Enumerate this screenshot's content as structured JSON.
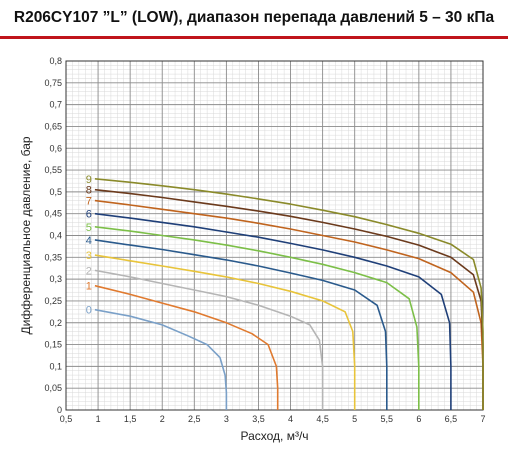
{
  "title": "R206CY107 ”L” (LOW), диапазон перепада давлений 5 – 30 кПа",
  "chart_data": {
    "type": "line",
    "title": "R206CY107 ”L” (LOW), диапазон перепада давлений 5 – 30 кПа",
    "xlabel": "Расход, м³/ч",
    "ylabel": "Дифференциальное давление, бар",
    "xlim": [
      0.5,
      7
    ],
    "ylim": [
      0,
      0.8
    ],
    "x_ticks": [
      "0,5",
      "1",
      "1,5",
      "2",
      "2,5",
      "3",
      "3,5",
      "4",
      "4,5",
      "5",
      "5,5",
      "6",
      "6,5",
      "7"
    ],
    "y_ticks": [
      "0",
      "0,05",
      "0,1",
      "0,15",
      "0,2",
      "0,25",
      "0,3",
      "0,35",
      "0,4",
      "0,45",
      "0,5",
      "0,55",
      "0,6",
      "0,65",
      "0,7",
      "0,75",
      "0,8"
    ],
    "grid": true,
    "series": [
      {
        "name": "0",
        "color": "#7aa0c8",
        "points": [
          [
            0.95,
            0.23
          ],
          [
            1.5,
            0.215
          ],
          [
            2.0,
            0.195
          ],
          [
            2.4,
            0.17
          ],
          [
            2.7,
            0.15
          ],
          [
            2.9,
            0.12
          ],
          [
            2.98,
            0.08
          ],
          [
            3.0,
            0.04
          ],
          [
            3.0,
            0.0
          ]
        ]
      },
      {
        "name": "1",
        "color": "#e07a2f",
        "points": [
          [
            0.95,
            0.285
          ],
          [
            1.5,
            0.265
          ],
          [
            2.0,
            0.245
          ],
          [
            2.5,
            0.225
          ],
          [
            3.0,
            0.2
          ],
          [
            3.4,
            0.175
          ],
          [
            3.65,
            0.15
          ],
          [
            3.78,
            0.1
          ],
          [
            3.8,
            0.05
          ],
          [
            3.8,
            0.0
          ]
        ]
      },
      {
        "name": "2",
        "color": "#b5b5b5",
        "points": [
          [
            0.95,
            0.32
          ],
          [
            1.5,
            0.305
          ],
          [
            2.0,
            0.29
          ],
          [
            2.5,
            0.275
          ],
          [
            3.0,
            0.26
          ],
          [
            3.5,
            0.24
          ],
          [
            4.0,
            0.215
          ],
          [
            4.3,
            0.195
          ],
          [
            4.45,
            0.16
          ],
          [
            4.5,
            0.1
          ],
          [
            4.5,
            0.0
          ]
        ]
      },
      {
        "name": "3",
        "color": "#e8c43a",
        "points": [
          [
            0.95,
            0.355
          ],
          [
            1.5,
            0.342
          ],
          [
            2.0,
            0.33
          ],
          [
            2.5,
            0.318
          ],
          [
            3.0,
            0.305
          ],
          [
            3.5,
            0.29
          ],
          [
            4.0,
            0.272
          ],
          [
            4.5,
            0.25
          ],
          [
            4.85,
            0.225
          ],
          [
            4.97,
            0.18
          ],
          [
            5.0,
            0.1
          ],
          [
            5.0,
            0.0
          ]
        ]
      },
      {
        "name": "4",
        "color": "#2a5a8c",
        "points": [
          [
            0.95,
            0.39
          ],
          [
            1.5,
            0.378
          ],
          [
            2.0,
            0.368
          ],
          [
            2.5,
            0.356
          ],
          [
            3.0,
            0.344
          ],
          [
            3.5,
            0.33
          ],
          [
            4.0,
            0.314
          ],
          [
            4.5,
            0.297
          ],
          [
            5.0,
            0.275
          ],
          [
            5.35,
            0.24
          ],
          [
            5.48,
            0.18
          ],
          [
            5.5,
            0.1
          ],
          [
            5.5,
            0.0
          ]
        ]
      },
      {
        "name": "5",
        "color": "#7cbf48",
        "points": [
          [
            0.95,
            0.42
          ],
          [
            1.5,
            0.41
          ],
          [
            2.0,
            0.4
          ],
          [
            2.5,
            0.39
          ],
          [
            3.0,
            0.378
          ],
          [
            3.5,
            0.365
          ],
          [
            4.0,
            0.35
          ],
          [
            4.5,
            0.334
          ],
          [
            5.0,
            0.315
          ],
          [
            5.5,
            0.292
          ],
          [
            5.85,
            0.255
          ],
          [
            5.97,
            0.19
          ],
          [
            6.0,
            0.1
          ],
          [
            6.0,
            0.0
          ]
        ]
      },
      {
        "name": "6",
        "color": "#1f3f78",
        "points": [
          [
            0.95,
            0.45
          ],
          [
            1.5,
            0.44
          ],
          [
            2.0,
            0.43
          ],
          [
            2.5,
            0.42
          ],
          [
            3.0,
            0.408
          ],
          [
            3.5,
            0.396
          ],
          [
            4.0,
            0.382
          ],
          [
            4.5,
            0.367
          ],
          [
            5.0,
            0.35
          ],
          [
            5.5,
            0.33
          ],
          [
            6.0,
            0.305
          ],
          [
            6.35,
            0.265
          ],
          [
            6.48,
            0.2
          ],
          [
            6.5,
            0.1
          ],
          [
            6.5,
            0.0
          ]
        ]
      },
      {
        "name": "7",
        "color": "#c0641e",
        "points": [
          [
            0.95,
            0.48
          ],
          [
            1.5,
            0.47
          ],
          [
            2.0,
            0.46
          ],
          [
            2.5,
            0.45
          ],
          [
            3.0,
            0.44
          ],
          [
            3.5,
            0.428
          ],
          [
            4.0,
            0.415
          ],
          [
            4.5,
            0.4
          ],
          [
            5.0,
            0.385
          ],
          [
            5.5,
            0.367
          ],
          [
            6.0,
            0.347
          ],
          [
            6.5,
            0.315
          ],
          [
            6.85,
            0.27
          ],
          [
            6.97,
            0.2
          ],
          [
            7.0,
            0.1
          ],
          [
            7.0,
            0.0
          ]
        ]
      },
      {
        "name": "8",
        "color": "#6b3a1c",
        "points": [
          [
            0.95,
            0.505
          ],
          [
            1.5,
            0.496
          ],
          [
            2.0,
            0.487
          ],
          [
            2.5,
            0.477
          ],
          [
            3.0,
            0.467
          ],
          [
            3.5,
            0.456
          ],
          [
            4.0,
            0.444
          ],
          [
            4.5,
            0.43
          ],
          [
            5.0,
            0.415
          ],
          [
            5.5,
            0.398
          ],
          [
            6.0,
            0.378
          ],
          [
            6.5,
            0.35
          ],
          [
            6.85,
            0.31
          ],
          [
            6.97,
            0.25
          ],
          [
            7.0,
            0.15
          ],
          [
            7.0,
            0.0
          ]
        ]
      },
      {
        "name": "9",
        "color": "#8a8a2a",
        "points": [
          [
            0.95,
            0.53
          ],
          [
            1.5,
            0.522
          ],
          [
            2.0,
            0.514
          ],
          [
            2.5,
            0.505
          ],
          [
            3.0,
            0.495
          ],
          [
            3.5,
            0.484
          ],
          [
            4.0,
            0.472
          ],
          [
            4.5,
            0.458
          ],
          [
            5.0,
            0.443
          ],
          [
            5.5,
            0.425
          ],
          [
            6.0,
            0.405
          ],
          [
            6.5,
            0.38
          ],
          [
            6.85,
            0.345
          ],
          [
            6.97,
            0.28
          ],
          [
            7.0,
            0.18
          ],
          [
            7.0,
            0.0
          ]
        ]
      }
    ]
  }
}
